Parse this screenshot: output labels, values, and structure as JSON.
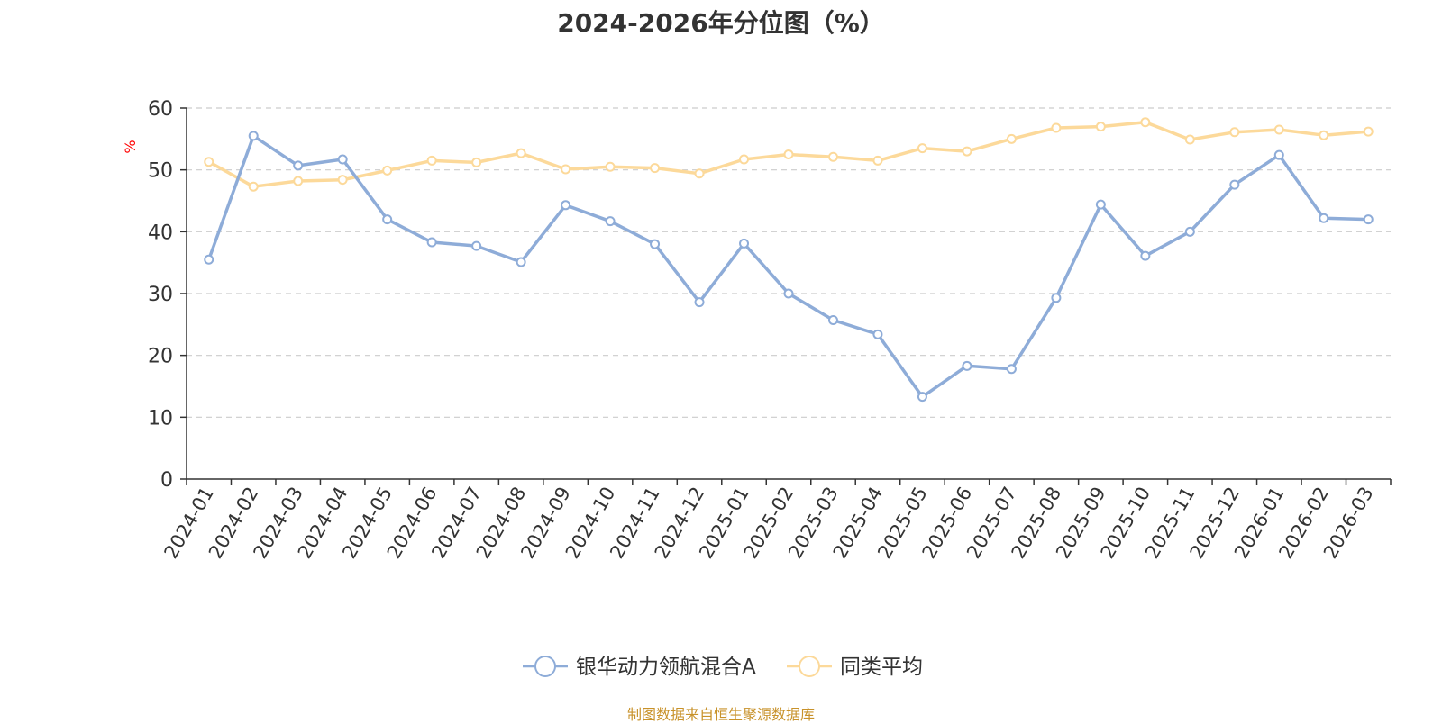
{
  "chart_data": {
    "type": "line",
    "title": "2024-2026年分位图（%）",
    "ylabel": "%",
    "xlabel": "",
    "ylim": [
      0,
      60
    ],
    "yticks": [
      0,
      10,
      20,
      30,
      40,
      50,
      60
    ],
    "grid": true,
    "legend_position": "bottom-center",
    "categories": [
      "2024-01",
      "2024-02",
      "2024-03",
      "2024-04",
      "2024-05",
      "2024-06",
      "2024-07",
      "2024-08",
      "2024-09",
      "2024-10",
      "2024-11",
      "2024-12",
      "2025-01",
      "2025-02",
      "2025-03",
      "2025-04",
      "2025-05",
      "2025-06",
      "2025-07",
      "2025-08",
      "2025-09",
      "2025-10",
      "2025-11",
      "2025-12",
      "2026-01",
      "2026-02",
      "2026-03"
    ],
    "series": [
      {
        "name": "银华动力领航混合A",
        "color": "#8eacd8",
        "values": [
          35.5,
          55.5,
          50.7,
          51.7,
          42.0,
          38.3,
          37.7,
          35.1,
          44.3,
          41.7,
          38.0,
          28.6,
          38.1,
          30.0,
          25.7,
          23.4,
          13.3,
          18.3,
          17.8,
          29.3,
          44.4,
          36.1,
          40.0,
          47.6,
          52.4,
          42.2,
          42.0
        ]
      },
      {
        "name": "同类平均",
        "color": "#fcd99a",
        "values": [
          51.3,
          47.3,
          48.2,
          48.4,
          49.9,
          51.5,
          51.2,
          52.7,
          50.1,
          50.5,
          50.3,
          49.4,
          51.7,
          52.5,
          52.1,
          51.5,
          53.5,
          53.0,
          55.0,
          56.8,
          57.0,
          57.7,
          54.9,
          56.1,
          56.5,
          55.6,
          56.2
        ]
      }
    ]
  },
  "footer": {
    "source_text": "制图数据来自恒生聚源数据库",
    "source_color": "#c8922a"
  },
  "style": {
    "axis_label_color": "#ff0000",
    "grid_color": "#cccccc",
    "axis_color": "#333333",
    "text_color": "#333333"
  }
}
